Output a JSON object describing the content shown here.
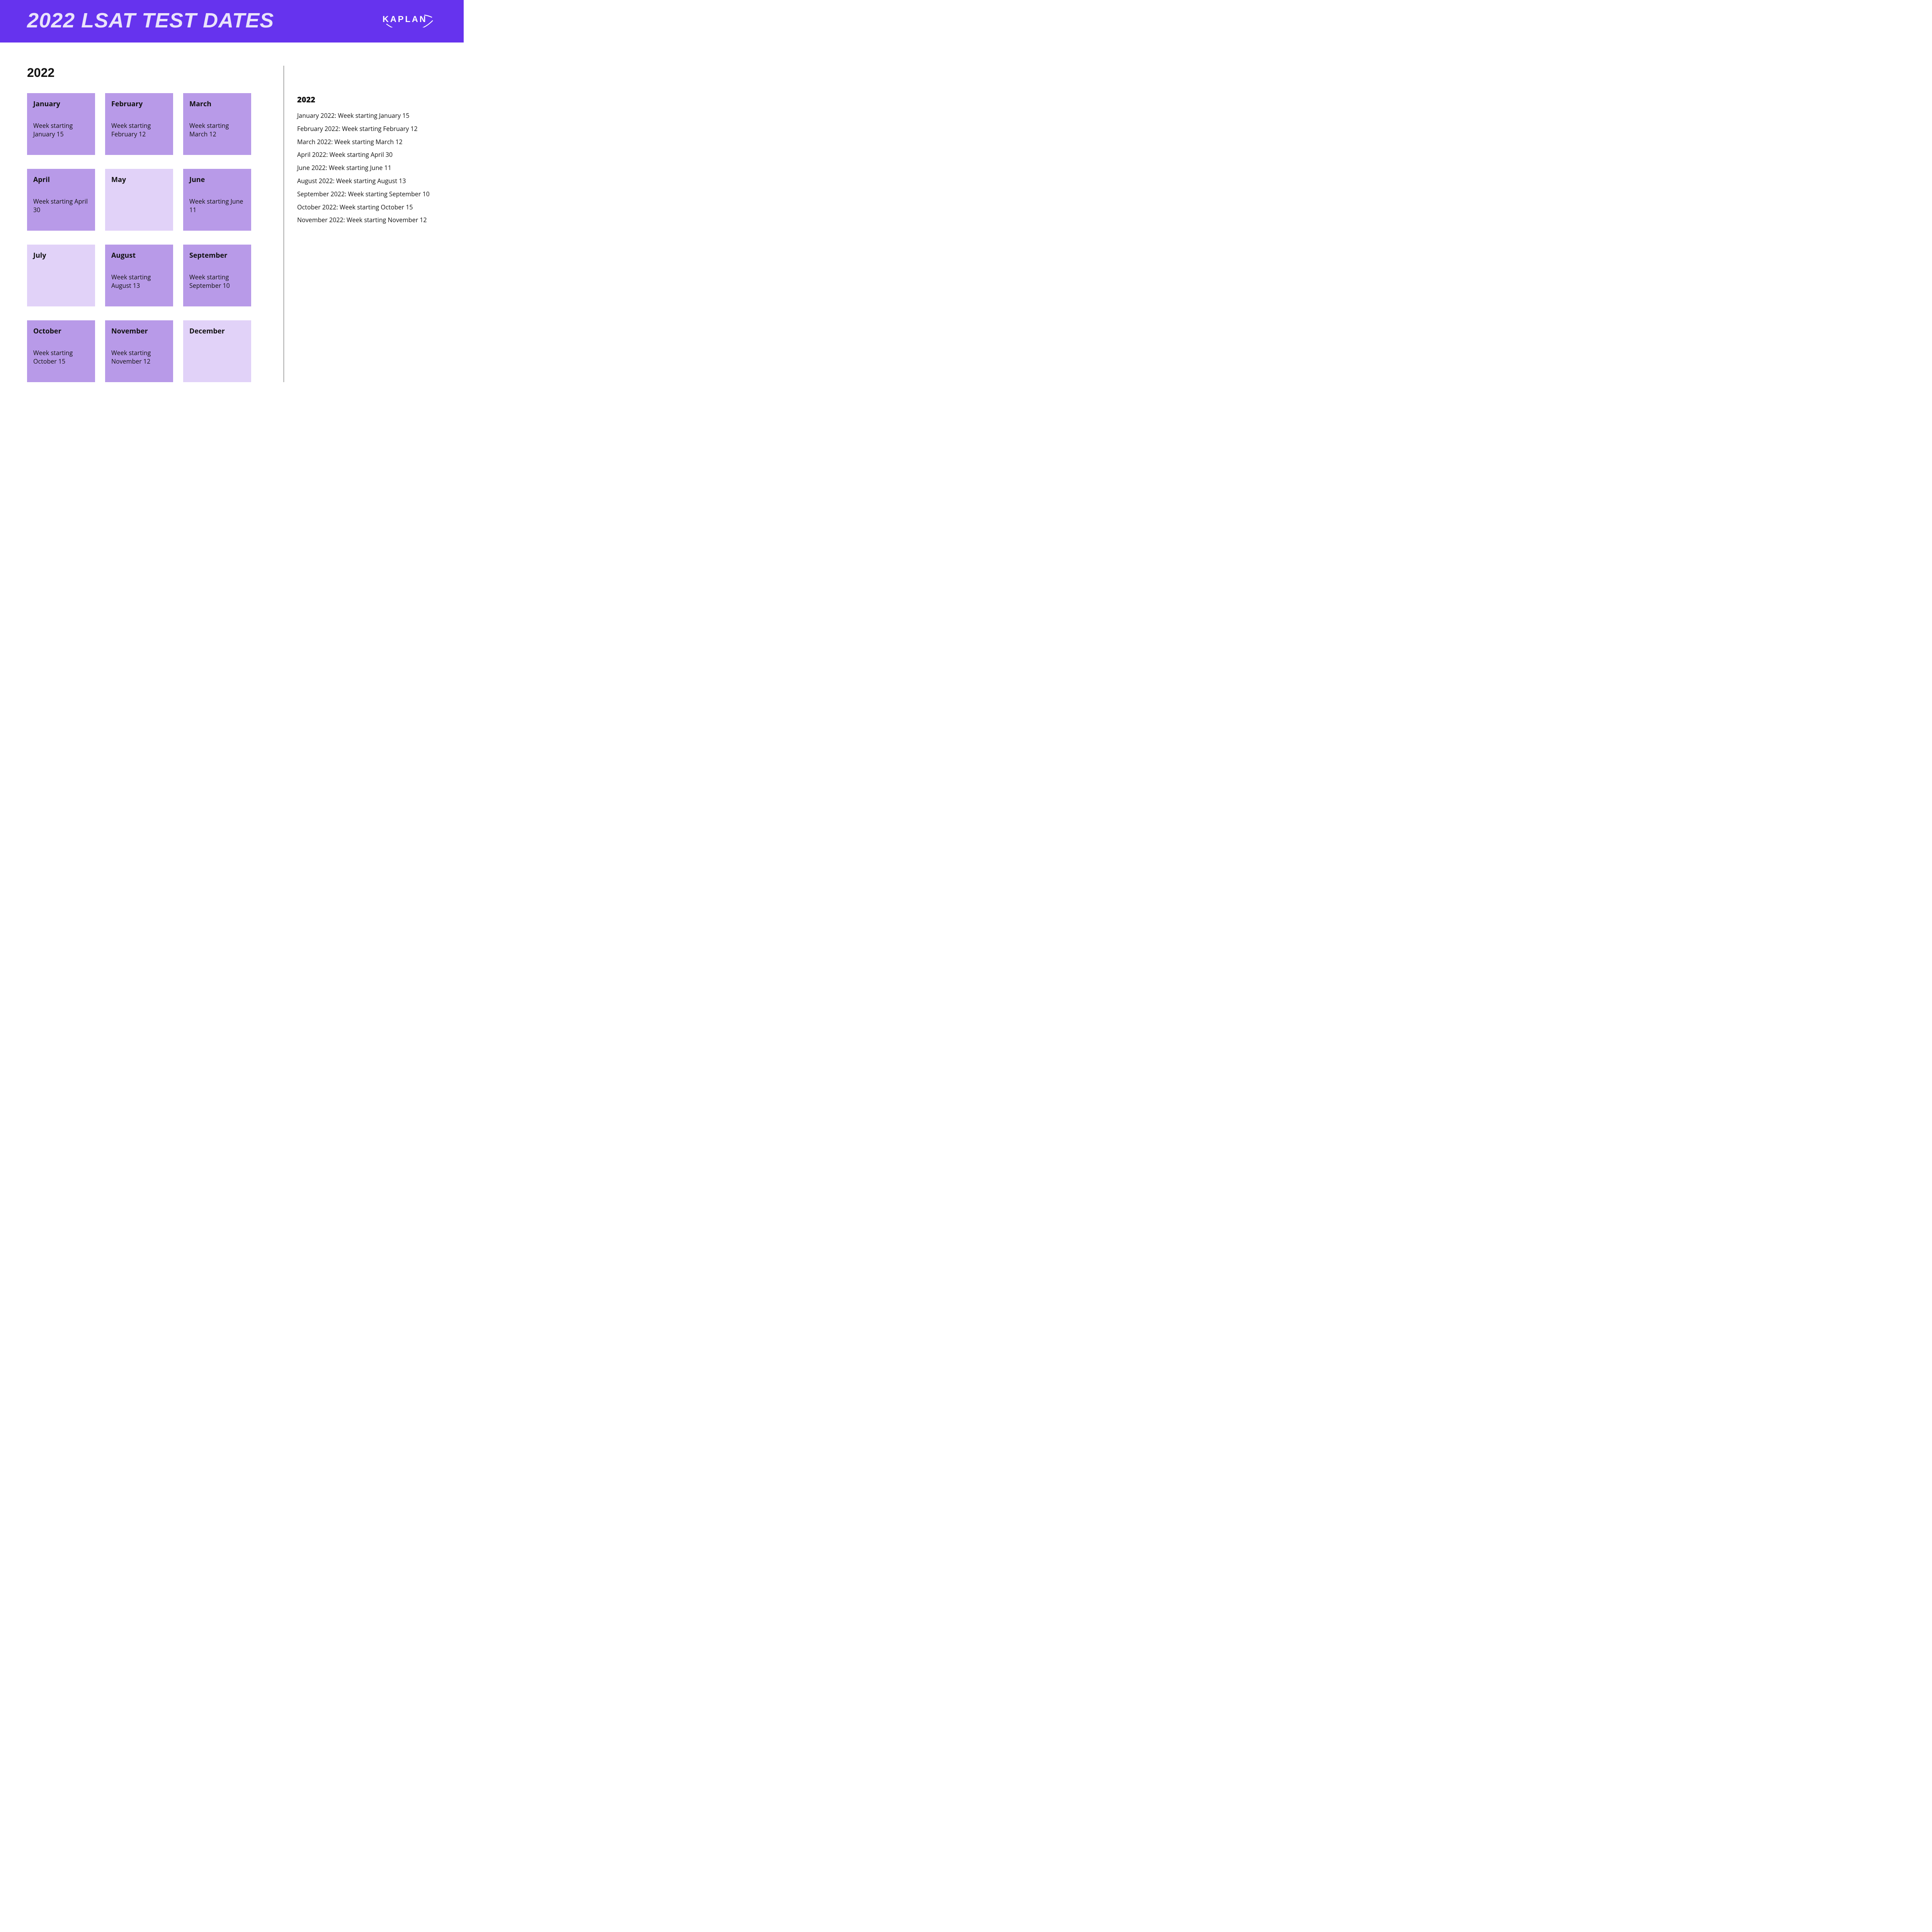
{
  "header": {
    "title": "2022 LSAT TEST DATES",
    "brand": "KAPLAN"
  },
  "colors": {
    "header_bg": "#6633ee",
    "header_text": "#eae3fb",
    "card_active_bg": "#b89ae8",
    "card_inactive_bg": "#e1d2f8",
    "page_bg": "#ffffff",
    "text": "#111111",
    "divider": "#555555"
  },
  "left": {
    "year": "2022",
    "cards": [
      {
        "month": "January",
        "text": "Week starting January 15",
        "active": true
      },
      {
        "month": "February",
        "text": "Week starting February 12",
        "active": true
      },
      {
        "month": "March",
        "text": "Week starting March 12",
        "active": true
      },
      {
        "month": "April",
        "text": "Week starting April 30",
        "active": true
      },
      {
        "month": "May",
        "text": "",
        "active": false
      },
      {
        "month": "June",
        "text": "Week starting June 11",
        "active": true
      },
      {
        "month": "July",
        "text": "",
        "active": false
      },
      {
        "month": "August",
        "text": "Week starting August 13",
        "active": true
      },
      {
        "month": "September",
        "text": "Week starting September 10",
        "active": true
      },
      {
        "month": "October",
        "text": "Week starting October 15",
        "active": true
      },
      {
        "month": "November",
        "text": "Week starting November 12",
        "active": true
      },
      {
        "month": "December",
        "text": "",
        "active": false
      }
    ]
  },
  "right": {
    "year": "2022",
    "items": [
      "January 2022: Week starting January 15",
      "February 2022: Week starting February 12",
      "March 2022: Week starting March 12",
      "April 2022: Week starting April 30",
      "June 2022: Week starting June 11",
      "August 2022: Week starting August 13",
      "September 2022: Week starting September 10",
      "October 2022: Week starting October 15",
      "November 2022: Week starting November 12"
    ]
  }
}
